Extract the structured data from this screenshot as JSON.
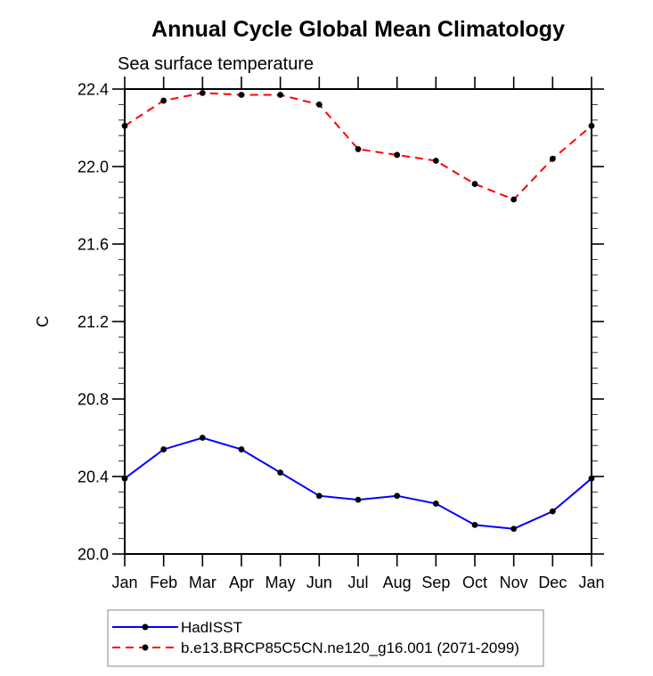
{
  "title": "Annual Cycle Global Mean Climatology",
  "subtitle": "Sea surface temperature",
  "chart_data": {
    "type": "line",
    "title": "Annual Cycle Global Mean Climatology",
    "subtitle": "Sea surface temperature",
    "xlabel": "",
    "ylabel": "C",
    "ylim": [
      20.0,
      22.4
    ],
    "ytick_major": [
      20.0,
      20.4,
      20.8,
      21.2,
      21.6,
      22.0,
      22.4
    ],
    "ytick_minor_step": 0.08,
    "grid": false,
    "legend_position": "bottom-left",
    "categories": [
      "Jan",
      "Feb",
      "Mar",
      "Apr",
      "May",
      "Jun",
      "Jul",
      "Aug",
      "Sep",
      "Oct",
      "Nov",
      "Dec",
      "Jan"
    ],
    "series": [
      {
        "name": "HadISST",
        "color": "#0000ff",
        "line_style": "solid",
        "marker": "circle",
        "marker_color": "#000000",
        "values": [
          20.39,
          20.54,
          20.6,
          20.54,
          20.42,
          20.3,
          20.28,
          20.3,
          20.26,
          20.15,
          20.13,
          20.22,
          20.39
        ]
      },
      {
        "name": "b.e13.BRCP85C5CN.ne120_g16.001 (2071-2099)",
        "color": "#ff0000",
        "line_style": "dashed",
        "marker": "circle",
        "marker_color": "#000000",
        "values": [
          22.21,
          22.34,
          22.38,
          22.37,
          22.37,
          22.32,
          22.09,
          22.06,
          22.03,
          21.91,
          21.83,
          22.04,
          22.21
        ]
      }
    ]
  }
}
